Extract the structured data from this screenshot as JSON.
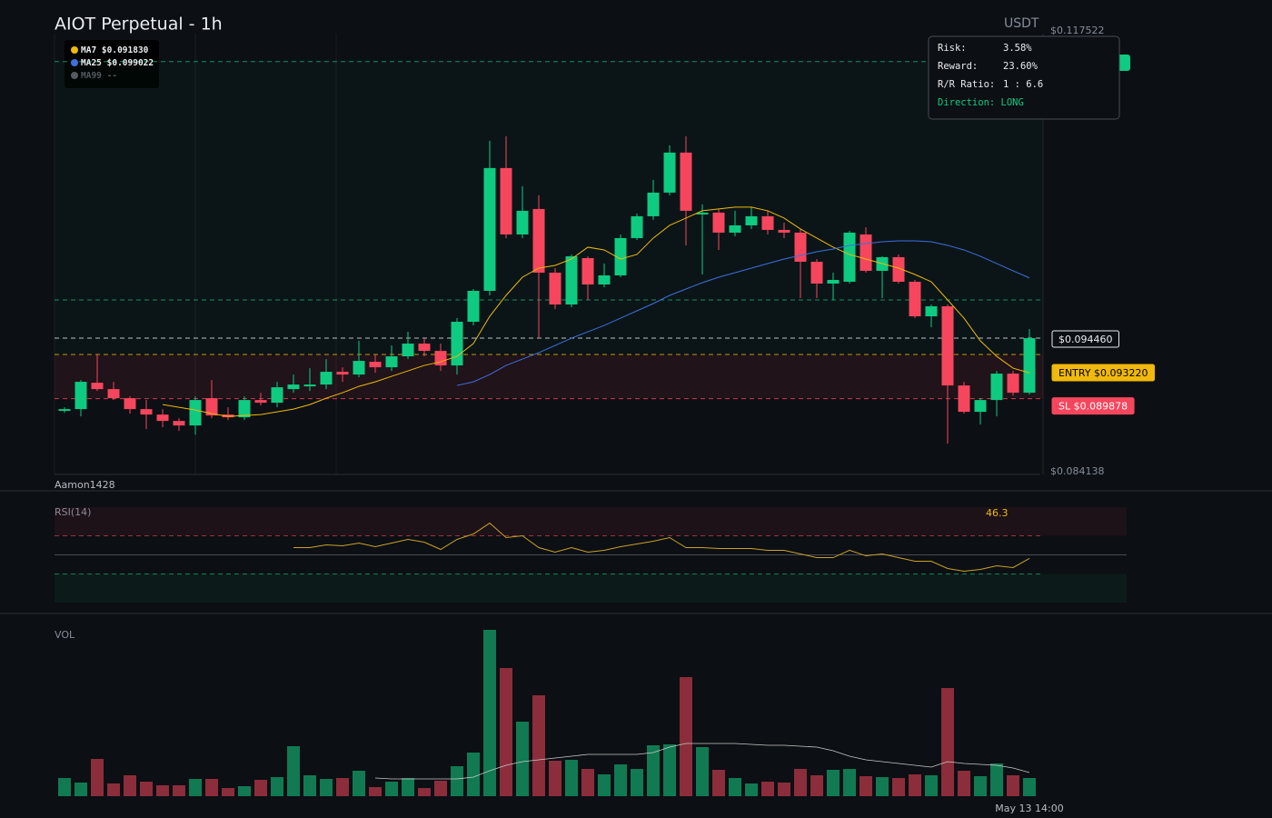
{
  "chart_data": [
    {
      "type": "candlestick",
      "title": "AIOT Perpetual - 1h",
      "y_label": "USDT",
      "watermark": "Aamon1428",
      "up_color": "#0ecb81",
      "down_color": "#f6465d",
      "open": [
        0.088949,
        0.089086,
        0.091084,
        0.090602,
        0.089913,
        0.089086,
        0.088673,
        0.088191,
        0.087846,
        0.089913,
        0.088673,
        0.088466,
        0.089775,
        0.089569,
        0.090602,
        0.090809,
        0.090947,
        0.091911,
        0.091704,
        0.092669,
        0.092255,
        0.093082,
        0.094047,
        0.093495,
        0.092393,
        0.0957,
        0.098042,
        0.107342,
        0.102313,
        0.104242,
        0.09942,
        0.097009,
        0.100522,
        0.098524,
        0.099213,
        0.102038,
        0.103691,
        0.105482,
        0.108513,
        0.103829,
        0.103967,
        0.102451,
        0.103002,
        0.103691,
        0.102658,
        0.102451,
        0.100247,
        0.098593,
        0.098731,
        0.102313,
        0.099558,
        0.100591,
        0.098731,
        0.096113,
        0.096871,
        0.090878,
        0.08888,
        0.089775,
        0.091773,
        0.090327
      ],
      "high": [
        0.089224,
        0.091291,
        0.09322,
        0.091153,
        0.090051,
        0.089775,
        0.089086,
        0.088398,
        0.090051,
        0.091291,
        0.089224,
        0.090051,
        0.090327,
        0.091153,
        0.091704,
        0.092187,
        0.092875,
        0.092255,
        0.094253,
        0.09322,
        0.093909,
        0.094942,
        0.09446,
        0.094047,
        0.095975,
        0.09818,
        0.109409,
        0.109753,
        0.105965,
        0.105276,
        0.099764,
        0.100798,
        0.10066,
        0.100109,
        0.102313,
        0.103898,
        0.106447,
        0.109065,
        0.109753,
        0.104587,
        0.104242,
        0.104105,
        0.10438,
        0.104105,
        0.103209,
        0.102727,
        0.100453,
        0.09942,
        0.102589,
        0.102864,
        0.10066,
        0.100798,
        0.098869,
        0.097009,
        0.097009,
        0.091153,
        0.089913,
        0.09198,
        0.09198,
        0.095149
      ],
      "low": [
        0.088811,
        0.088535,
        0.090464,
        0.089775,
        0.088742,
        0.087571,
        0.087709,
        0.087433,
        0.087158,
        0.088398,
        0.08826,
        0.08826,
        0.089362,
        0.089224,
        0.090327,
        0.090464,
        0.090602,
        0.091153,
        0.091498,
        0.091842,
        0.09198,
        0.092875,
        0.093082,
        0.09198,
        0.091704,
        0.095424,
        0.097698,
        0.102038,
        0.102038,
        0.09446,
        0.096664,
        0.096802,
        0.097353,
        0.098318,
        0.099076,
        0.1019,
        0.103416,
        0.105276,
        0.101487,
        0.099282,
        0.101142,
        0.102176,
        0.102727,
        0.102313,
        0.102038,
        0.097491,
        0.097491,
        0.097353,
        0.098593,
        0.09942,
        0.097491,
        0.098593,
        0.095975,
        0.095287,
        0.086469,
        0.088742,
        0.087915,
        0.088535,
        0.09012,
        0.090189
      ],
      "close": [
        0.089086,
        0.091153,
        0.090602,
        0.089913,
        0.089086,
        0.088673,
        0.088191,
        0.087846,
        0.089775,
        0.088604,
        0.088466,
        0.089775,
        0.089569,
        0.09074,
        0.090947,
        0.090947,
        0.091911,
        0.091704,
        0.092738,
        0.092255,
        0.093082,
        0.094047,
        0.093495,
        0.092393,
        0.0957,
        0.098042,
        0.107342,
        0.102313,
        0.104105,
        0.09942,
        0.097009,
        0.10066,
        0.098524,
        0.099213,
        0.102038,
        0.103691,
        0.105482,
        0.108513,
        0.104105,
        0.103967,
        0.102451,
        0.103002,
        0.103691,
        0.102658,
        0.102451,
        0.100247,
        0.098593,
        0.098869,
        0.102451,
        0.099558,
        0.100591,
        0.098731,
        0.096113,
        0.096871,
        0.090878,
        0.08888,
        0.089775,
        0.091773,
        0.090327,
        0.09446
      ],
      "series": [
        {
          "name": "MA7",
          "legend_label": "$0.091830",
          "color": "#f0b90b",
          "values": [
            null,
            null,
            null,
            null,
            null,
            null,
            0.089431,
            0.089224,
            0.089018,
            0.088742,
            0.088535,
            0.088604,
            0.088673,
            0.08888,
            0.089086,
            0.089431,
            0.089913,
            0.090327,
            0.090809,
            0.091153,
            0.091567,
            0.09198,
            0.092393,
            0.092669,
            0.093082,
            0.094047,
            0.096113,
            0.097698,
            0.099076,
            0.099764,
            0.099971,
            0.100453,
            0.101349,
            0.101142,
            0.100453,
            0.100798,
            0.102038,
            0.103002,
            0.103553,
            0.104105,
            0.104242,
            0.10438,
            0.10438,
            0.104105,
            0.103553,
            0.102727,
            0.102038,
            0.101349,
            0.100798,
            0.100453,
            0.100109,
            0.099764,
            0.099282,
            0.098731,
            0.097353,
            0.095975,
            0.094253,
            0.093082,
            0.092187,
            0.09183
          ]
        },
        {
          "name": "MA25",
          "legend_label": "$0.099022",
          "color": "#3d6fe0",
          "values": [
            null,
            null,
            null,
            null,
            null,
            null,
            null,
            null,
            null,
            null,
            null,
            null,
            null,
            null,
            null,
            null,
            null,
            null,
            null,
            null,
            null,
            null,
            null,
            null,
            0.090878,
            0.091153,
            0.091704,
            0.092393,
            0.092875,
            0.093358,
            0.093909,
            0.09446,
            0.094942,
            0.095424,
            0.095975,
            0.096527,
            0.097078,
            0.097698,
            0.09818,
            0.098662,
            0.099076,
            0.09942,
            0.099764,
            0.100109,
            0.100453,
            0.100729,
            0.101004,
            0.101211,
            0.101487,
            0.101624,
            0.101762,
            0.101831,
            0.101831,
            0.101762,
            0.101487,
            0.101142,
            0.10066,
            0.100109,
            0.099558,
            0.099022
          ]
        }
      ],
      "legend_extra": [
        {
          "name": "MA99",
          "legend_label": "--",
          "color": "#555a60"
        }
      ],
      "ylim": [
        0.084138,
        0.117522
      ],
      "yticks": [
        {
          "value": 0.117522,
          "label": "$0.117522"
        },
        {
          "value": 0.084138,
          "label": "$0.084138"
        }
      ],
      "levels": [
        {
          "value": 0.115403,
          "color": "#0ecb81"
        },
        {
          "value": 0.097353,
          "color": "#0ecb81"
        }
      ],
      "price_lines": [
        {
          "value": 0.09446,
          "label": "$0.094460",
          "color": "#eaecef"
        },
        {
          "value": 0.09322,
          "label": "ENTRY $0.093220",
          "color": "#f0b90b"
        },
        {
          "value": 0.089878,
          "label": "SL $0.089878",
          "color": "#f6465d"
        }
      ],
      "position_panel": {
        "rows": [
          {
            "label": "Risk:",
            "value": "3.58%"
          },
          {
            "label": "Reward:",
            "value": "23.60%"
          },
          {
            "label": "R/R Ratio:",
            "value": "1 : 6.6"
          }
        ],
        "direction": "Direction: LONG"
      }
    },
    {
      "type": "line",
      "title": "RSI(14)",
      "ylim": [
        0,
        100
      ],
      "levels": [
        70,
        50,
        30
      ],
      "series": [
        {
          "color": "#c9a227",
          "values": [
            null,
            null,
            null,
            null,
            null,
            null,
            null,
            null,
            null,
            null,
            null,
            null,
            null,
            null,
            57.6,
            57.6,
            60.5,
            59.5,
            62.4,
            58.6,
            62.4,
            66.2,
            63.3,
            55.7,
            66.2,
            71.9,
            83.3,
            68.1,
            70.0,
            57.6,
            52.9,
            57.6,
            52.9,
            54.8,
            58.6,
            61.4,
            64.3,
            68.1,
            57.6,
            57.6,
            56.7,
            56.7,
            56.7,
            54.8,
            54.8,
            51.0,
            47.1,
            47.1,
            54.8,
            49.0,
            51.0,
            47.1,
            43.3,
            43.3,
            35.7,
            32.9,
            34.8,
            38.6,
            36.7,
            46.3
          ]
        }
      ]
    },
    {
      "type": "bar",
      "title": "VOL",
      "ylim": [
        0,
        183
      ],
      "categories": [
        null,
        null,
        null,
        null,
        null,
        null,
        null,
        null,
        null,
        null,
        null,
        null,
        null,
        null,
        null,
        null,
        null,
        null,
        null,
        null,
        null,
        null,
        null,
        null,
        null,
        null,
        null,
        null,
        null,
        null,
        null,
        null,
        null,
        null,
        null,
        null,
        null,
        null,
        null,
        null,
        null,
        null,
        null,
        null,
        null,
        null,
        null,
        null,
        null,
        null,
        null,
        null,
        null,
        null,
        null,
        null,
        null,
        null,
        null,
        "May 13 14:00"
      ],
      "up_color": "#117a52",
      "down_color": "#8c2d3b",
      "values": [
        20,
        15,
        41,
        14,
        23,
        16,
        12,
        12,
        19,
        19,
        9,
        11,
        18,
        21,
        55,
        23,
        19,
        20,
        28,
        10,
        16,
        20,
        9,
        17,
        33,
        48,
        183,
        141,
        82,
        111,
        39,
        40,
        30,
        24,
        35,
        30,
        56,
        57,
        131,
        54,
        29,
        20,
        14,
        16,
        15,
        30,
        23,
        29,
        30,
        22,
        21,
        20,
        24,
        23,
        119,
        28,
        22,
        36,
        23,
        20
      ],
      "series": [
        {
          "color": "#c8c8c8",
          "values": [
            null,
            null,
            null,
            null,
            null,
            null,
            null,
            null,
            null,
            null,
            null,
            null,
            null,
            null,
            null,
            null,
            null,
            null,
            null,
            20,
            19,
            19,
            19,
            19,
            19,
            21,
            28,
            34,
            38,
            40,
            42,
            44,
            46,
            46,
            46,
            46,
            48,
            54,
            58,
            58,
            58,
            58,
            57,
            56,
            56,
            55,
            54,
            50,
            44,
            40,
            38,
            36,
            34,
            32,
            38,
            36,
            35,
            34,
            31,
            26
          ]
        }
      ]
    }
  ]
}
